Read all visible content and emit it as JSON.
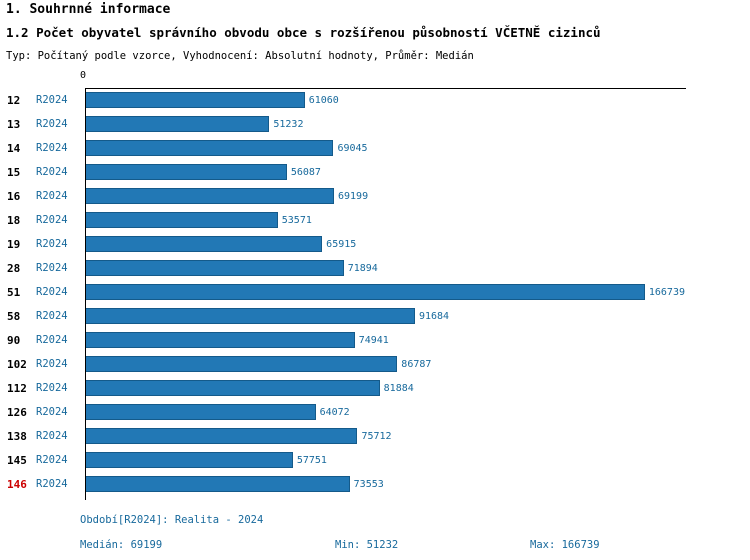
{
  "header": {
    "title1": "1. Souhrnné informace",
    "title2": "1.2 Počet obyvatel správního obvodu obce s rozšířenou působností VČETNĚ cizinců",
    "subtitle": "Typ: Počítaný podle vzorce, Vyhodnocení: Absolutní hodnoty, Průměr: Medián"
  },
  "chart_data": {
    "type": "bar",
    "orientation": "horizontal",
    "title": "1.2 Počet obyvatel správního obvodu obce s rozšířenou působností VČETNĚ cizinců",
    "axis_zero_label": "0",
    "series_label": "R2024",
    "categories": [
      "12",
      "13",
      "14",
      "15",
      "16",
      "18",
      "19",
      "28",
      "51",
      "58",
      "90",
      "102",
      "112",
      "126",
      "138",
      "145",
      "146"
    ],
    "values": [
      61060,
      51232,
      69045,
      56087,
      69199,
      53571,
      65915,
      71894,
      166739,
      91684,
      74941,
      86787,
      81884,
      64072,
      75712,
      57751,
      73553
    ],
    "highlighted_category": "146",
    "xlim": [
      0,
      166739
    ],
    "bar_color": "#2278b5",
    "text_color": "#17699c",
    "highlight_color": "#cc0000",
    "legend_position": "none",
    "grid": false
  },
  "footer": {
    "period": "Období[R2024]: Realita - 2024",
    "median": "Medián: 69199",
    "min": "Min: 51232",
    "max": "Max: 166739"
  }
}
